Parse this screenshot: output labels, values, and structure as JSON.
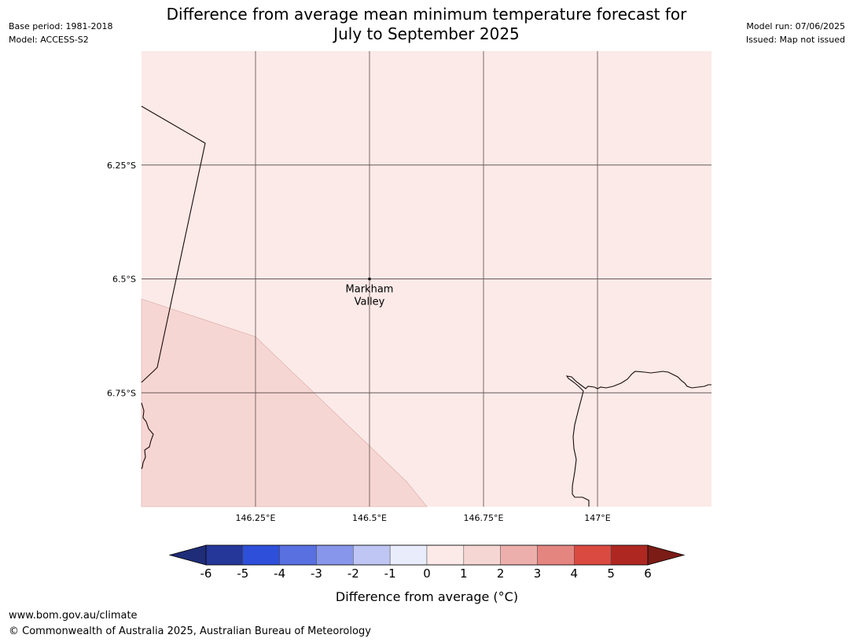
{
  "header": {
    "base_period": "Base period: 1981-2018",
    "model": "Model: ACCESS-S2",
    "model_run": "Model run: 07/06/2025",
    "issued": "Issued: Map not issued",
    "title_line1": "Difference from average mean minimum temperature forecast for",
    "title_line2": "July to September 2025"
  },
  "map": {
    "lon_ticks": [
      "146.25°E",
      "146.5°E",
      "146.75°E",
      "147°E"
    ],
    "lat_ticks": [
      "6.25°S",
      "6.5°S",
      "6.75°S"
    ],
    "extent": {
      "lon_min": 146.0,
      "lon_max": 147.25,
      "lat_min": -7.0,
      "lat_max": -6.0
    },
    "grid_lons": [
      146.25,
      146.5,
      146.75,
      147.0
    ],
    "grid_lats": [
      -6.25,
      -6.5,
      -6.75
    ],
    "place": {
      "name_line1": "Markham",
      "name_line2": "Valley",
      "lon": 146.5,
      "lat": -6.5
    },
    "fill_colors": {
      "zero_to_one": "#fbeae8",
      "one_to_two": "#f6d6d3"
    }
  },
  "colorbar": {
    "levels": [
      -6,
      -5,
      -4,
      -3,
      -2,
      -1,
      0,
      1,
      2,
      3,
      4,
      5,
      6
    ],
    "tick_labels": [
      "-6",
      "-5",
      "-4",
      "-3",
      "-2",
      "-1",
      "0",
      "1",
      "2",
      "3",
      "4",
      "5",
      "6"
    ],
    "colors": [
      "#26379a",
      "#2d4fd9",
      "#5870e0",
      "#8796eb",
      "#bfc6f3",
      "#e9ecfb",
      "#fbeae8",
      "#f6d6d3",
      "#edafab",
      "#e58580",
      "#db4a41",
      "#ae2821"
    ],
    "under_color": "#1f2d79",
    "over_color": "#7b1c17",
    "label": "Difference from average (°C)"
  },
  "footer": {
    "url": "www.bom.gov.au/climate",
    "copyright": "© Commonwealth of Australia 2025, Australian Bureau of Meteorology"
  }
}
